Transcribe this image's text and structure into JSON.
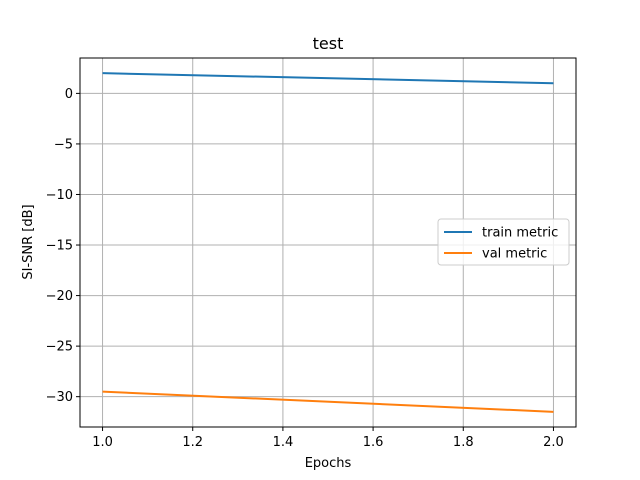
{
  "chart_data": {
    "type": "line",
    "title": "test",
    "xlabel": "Epochs",
    "ylabel": "SI-SNR [dB]",
    "xlim": [
      0.95,
      2.05
    ],
    "ylim": [
      -33,
      3.5
    ],
    "xticks": [
      1.0,
      1.2,
      1.4,
      1.6,
      1.8,
      2.0
    ],
    "xtick_labels": [
      "1.0",
      "1.2",
      "1.4",
      "1.6",
      "1.8",
      "2.0"
    ],
    "yticks": [
      0,
      -5,
      -10,
      -15,
      -20,
      -25,
      -30
    ],
    "ytick_labels": [
      "0",
      "−5",
      "−10",
      "−15",
      "−20",
      "−25",
      "−30"
    ],
    "grid": true,
    "legend_position": "center-right",
    "series": [
      {
        "name": "train metric",
        "color": "#1f77b4",
        "x": [
          1.0,
          2.0
        ],
        "y": [
          2.0,
          1.0
        ]
      },
      {
        "name": "val metric",
        "color": "#ff7f0e",
        "x": [
          1.0,
          2.0
        ],
        "y": [
          -29.5,
          -31.5
        ]
      }
    ]
  }
}
